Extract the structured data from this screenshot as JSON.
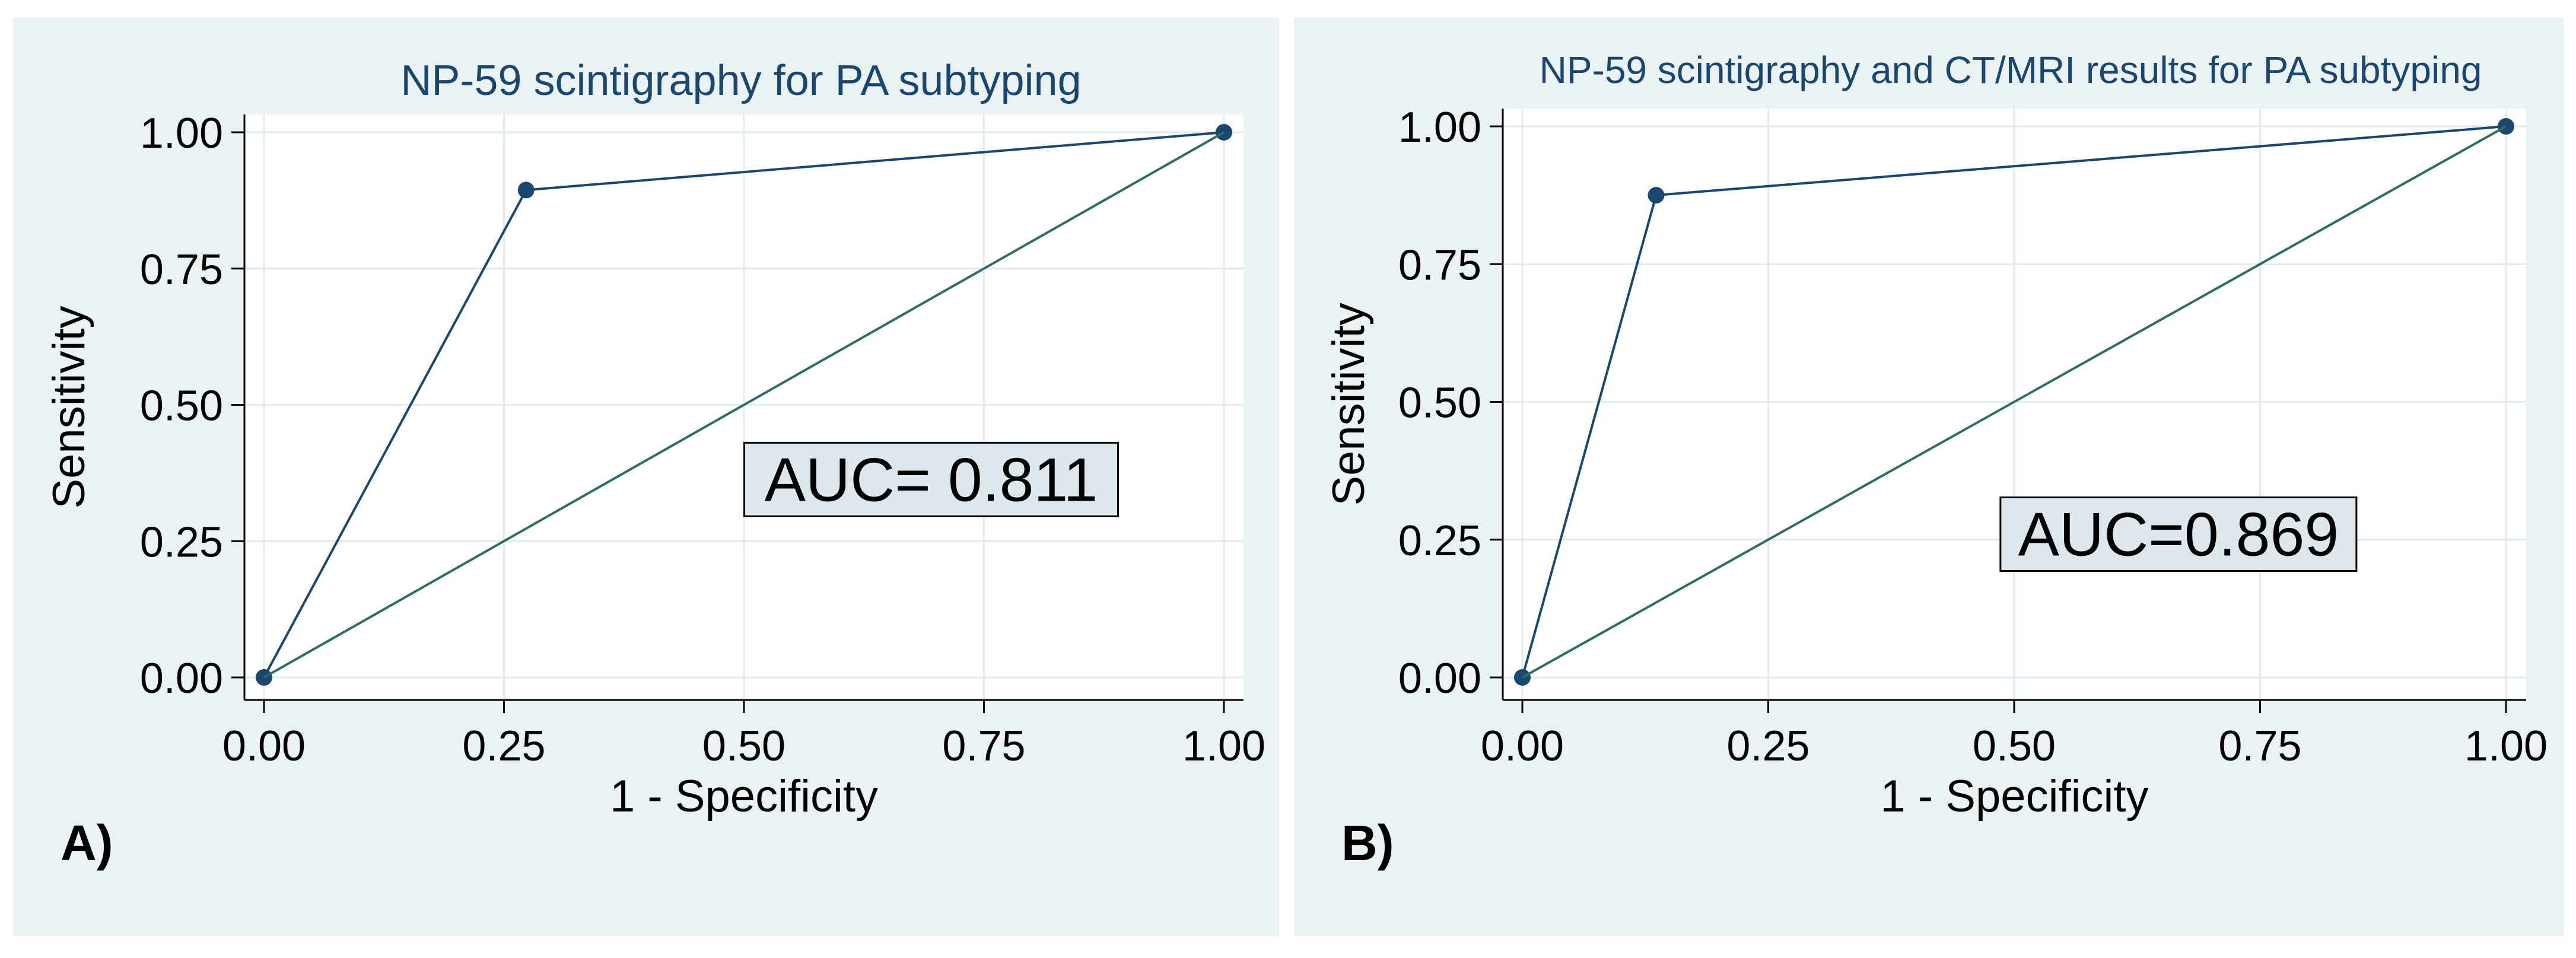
{
  "colors": {
    "panel_background": "#eaf2f3",
    "plot_background": "#ffffff",
    "grid": "#e1ebed",
    "roc_curve": "#1a476f",
    "reference_line": "#2d6d66",
    "title": "#1a476f",
    "auc_box_fill": "#dde7ec"
  },
  "chart_data": [
    {
      "type": "line",
      "panel_label": "A)",
      "title": "NP-59 scintigraphy for PA subtyping",
      "xlabel": "1 - Specificity",
      "ylabel": "Sensitivity",
      "xlim": [
        0,
        1
      ],
      "ylim": [
        0,
        1
      ],
      "xticks": [
        0,
        0.25,
        0.5,
        0.75,
        1
      ],
      "yticks": [
        0,
        0.25,
        0.5,
        0.75,
        1
      ],
      "xtick_labels": [
        "0.00",
        "0.25",
        "0.50",
        "0.75",
        "1.00"
      ],
      "ytick_labels": [
        "0.00",
        "0.25",
        "0.50",
        "0.75",
        "1.00"
      ],
      "grid": true,
      "series": [
        {
          "name": "ROC curve",
          "x": [
            0,
            0.273,
            1
          ],
          "y": [
            0,
            0.894,
            1
          ],
          "markers": true
        },
        {
          "name": "Reference line",
          "x": [
            0,
            1
          ],
          "y": [
            0,
            1
          ],
          "markers": false
        }
      ],
      "annotation": {
        "text": "AUC= 0.811",
        "x_center": 0.695,
        "y_center": 0.363
      }
    },
    {
      "type": "line",
      "panel_label": "B)",
      "title": "NP-59 scintigraphy and CT/MRI results for PA subtyping",
      "xlabel": "1 - Specificity",
      "ylabel": "Sensitivity",
      "xlim": [
        0,
        1
      ],
      "ylim": [
        0,
        1
      ],
      "xticks": [
        0,
        0.25,
        0.5,
        0.75,
        1
      ],
      "yticks": [
        0,
        0.25,
        0.5,
        0.75,
        1
      ],
      "xtick_labels": [
        "0.00",
        "0.25",
        "0.50",
        "0.75",
        "1.00"
      ],
      "ytick_labels": [
        "0.00",
        "0.25",
        "0.50",
        "0.75",
        "1.00"
      ],
      "grid": true,
      "series": [
        {
          "name": "ROC curve",
          "x": [
            0,
            0.136,
            1
          ],
          "y": [
            0,
            0.875,
            1
          ],
          "markers": true
        },
        {
          "name": "Reference line",
          "x": [
            0,
            1
          ],
          "y": [
            0,
            1
          ],
          "markers": false
        }
      ],
      "annotation": {
        "text": "AUC=0.869",
        "x_center": 0.667,
        "y_center": 0.26
      }
    }
  ]
}
